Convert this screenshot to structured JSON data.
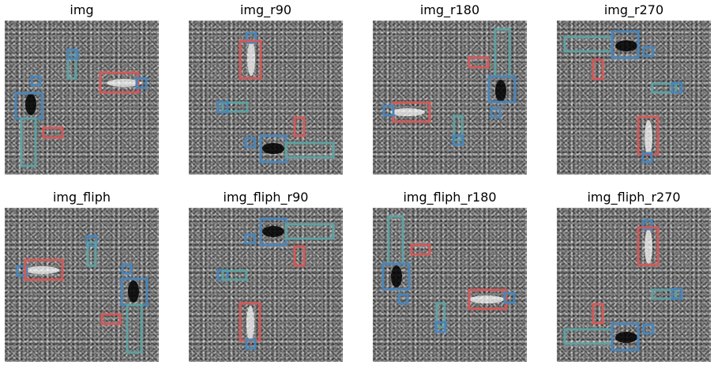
{
  "panels": [
    {
      "title": "img"
    },
    {
      "title": "img_r90"
    },
    {
      "title": "img_r180"
    },
    {
      "title": "img_r270"
    },
    {
      "title": "img_fliph"
    },
    {
      "title": "img_fliph_r90"
    },
    {
      "title": "img_fliph_r180"
    },
    {
      "title": "img_fliph_r270"
    }
  ],
  "box_colors": {
    "blue": "#4a85b8",
    "teal": "#5fa0a0",
    "red": "#d05a5a"
  }
}
